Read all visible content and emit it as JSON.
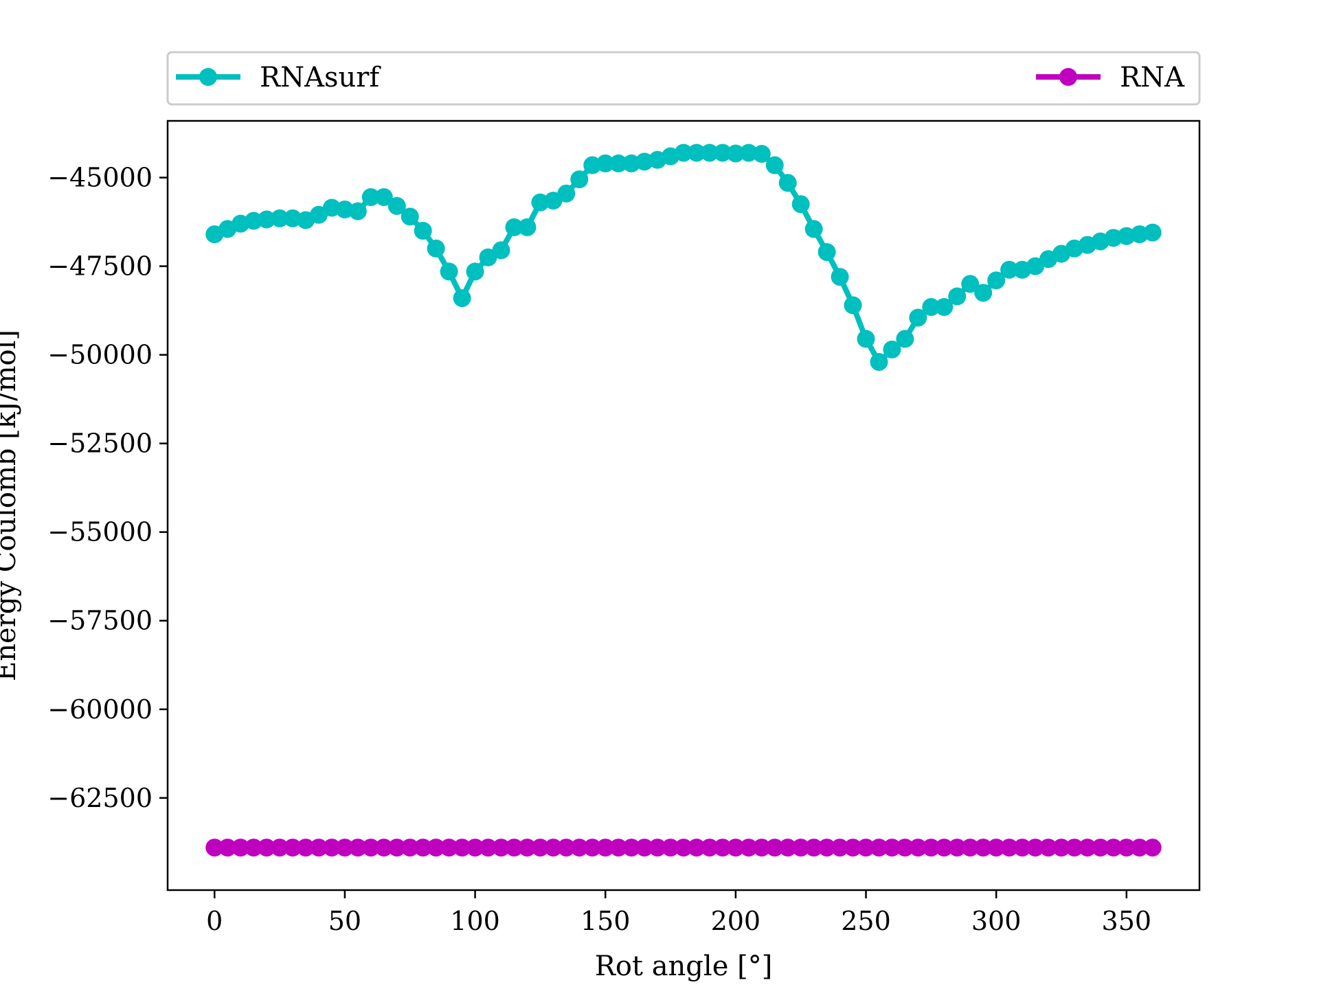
{
  "chart_data": {
    "type": "line",
    "title": "",
    "xlabel": "Rot angle [°]",
    "ylabel": "Energy Coulomb [kJ/mol]",
    "xlim": [
      -18,
      378
    ],
    "ylim": [
      -65100,
      -43400
    ],
    "xticks": [
      0,
      50,
      100,
      150,
      200,
      250,
      300,
      350
    ],
    "yticks": [
      -45000,
      -47500,
      -50000,
      -52500,
      -55000,
      -57500,
      -60000,
      -62500
    ],
    "ytick_labels": [
      "−45000",
      "−47500",
      "−50000",
      "−52500",
      "−55000",
      "−57500",
      "−60000",
      "−62500"
    ],
    "grid": false,
    "legend_position": "top (above plot, spanning width)",
    "x": [
      0,
      5,
      10,
      15,
      20,
      25,
      30,
      35,
      40,
      45,
      50,
      55,
      60,
      65,
      70,
      75,
      80,
      85,
      90,
      95,
      100,
      105,
      110,
      115,
      120,
      125,
      130,
      135,
      140,
      145,
      150,
      155,
      160,
      165,
      170,
      175,
      180,
      185,
      190,
      195,
      200,
      205,
      210,
      215,
      220,
      225,
      230,
      235,
      240,
      245,
      250,
      255,
      260,
      265,
      270,
      275,
      280,
      285,
      290,
      295,
      300,
      305,
      310,
      315,
      320,
      325,
      330,
      335,
      340,
      345,
      350,
      355,
      360
    ],
    "series": [
      {
        "name": "RNAsurf",
        "color": "#00bfbf",
        "values": [
          -46600,
          -46450,
          -46300,
          -46220,
          -46180,
          -46150,
          -46150,
          -46200,
          -46050,
          -45850,
          -45900,
          -45950,
          -45550,
          -45550,
          -45800,
          -46100,
          -46500,
          -47000,
          -47650,
          -48400,
          -47650,
          -47250,
          -47050,
          -46400,
          -46400,
          -45700,
          -45650,
          -45450,
          -45050,
          -44650,
          -44600,
          -44600,
          -44600,
          -44550,
          -44500,
          -44400,
          -44300,
          -44300,
          -44300,
          -44300,
          -44320,
          -44300,
          -44330,
          -44650,
          -45150,
          -45750,
          -46450,
          -47100,
          -47800,
          -48600,
          -49550,
          -50200,
          -49850,
          -49550,
          -48950,
          -48650,
          -48650,
          -48350,
          -48000,
          -48250,
          -47900,
          -47600,
          -47600,
          -47500,
          -47300,
          -47150,
          -47000,
          -46900,
          -46800,
          -46700,
          -46650,
          -46600,
          -46550
        ]
      },
      {
        "name": "RNA",
        "color": "#bf00bf",
        "values": [
          -63900,
          -63900,
          -63900,
          -63900,
          -63900,
          -63900,
          -63900,
          -63900,
          -63900,
          -63900,
          -63900,
          -63900,
          -63900,
          -63900,
          -63900,
          -63900,
          -63900,
          -63900,
          -63900,
          -63900,
          -63900,
          -63900,
          -63900,
          -63900,
          -63900,
          -63900,
          -63900,
          -63900,
          -63900,
          -63900,
          -63900,
          -63900,
          -63900,
          -63900,
          -63900,
          -63900,
          -63900,
          -63900,
          -63900,
          -63900,
          -63900,
          -63900,
          -63900,
          -63900,
          -63900,
          -63900,
          -63900,
          -63900,
          -63900,
          -63900,
          -63900,
          -63900,
          -63900,
          -63900,
          -63900,
          -63900,
          -63900,
          -63900,
          -63900,
          -63900,
          -63900,
          -63900,
          -63900,
          -63900,
          -63900,
          -63900,
          -63900,
          -63900,
          -63900,
          -63900,
          -63900,
          -63900,
          -63900
        ]
      }
    ]
  }
}
